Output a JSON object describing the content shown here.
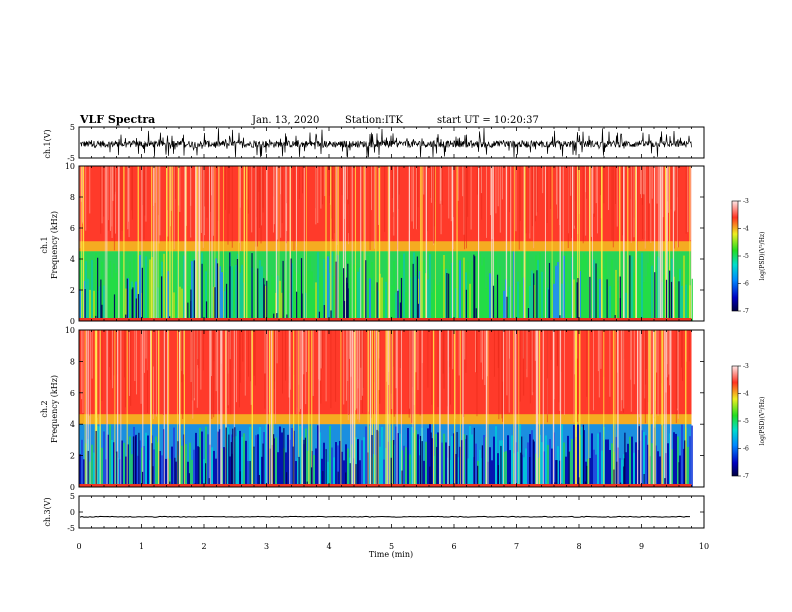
{
  "header": {
    "title": "VLF Spectra",
    "date": "Jan. 13, 2020",
    "station": "Station:ITK",
    "start": "start UT = 10:20:37"
  },
  "colors": {
    "spectrum_low": "#0000a0",
    "spectrum_mid": "#22dd44",
    "spectrum_high": "#ff3322",
    "waveform": "#000000"
  },
  "chart_data": [
    {
      "id": "ch1-waveform",
      "type": "line",
      "ylabel": "ch.1(V)",
      "yticks": [
        "5",
        "-5"
      ],
      "ylim": [
        -5,
        5
      ],
      "description_level": [
        -0.5,
        3.0
      ]
    },
    {
      "id": "ch1-spectrogram",
      "type": "heatmap",
      "ylabel": "ch.1\nFrequency (kHz)",
      "ylabel_line1": "ch.1",
      "ylabel_line2": "Frequency (kHz)",
      "yticks": [
        "0",
        "2",
        "4",
        "6",
        "8",
        "10"
      ],
      "ylim": [
        0,
        10
      ],
      "band_boundary_khz": 4.5,
      "colorbar": {
        "label": "log(PSD)(V²/Hz)",
        "ticks": [
          "-3",
          "-4",
          "-5",
          "-6",
          "-7"
        ],
        "range": [
          -7,
          -3
        ]
      }
    },
    {
      "id": "ch2-spectrogram",
      "type": "heatmap",
      "ylabel_line1": "ch.2",
      "ylabel_line2": "Frequency (kHz)",
      "yticks": [
        "0",
        "2",
        "4",
        "6",
        "8",
        "10"
      ],
      "ylim": [
        0,
        10
      ],
      "band_boundary_khz": 4.0,
      "colorbar": {
        "label": "log(PSD)(V²/Hz)",
        "ticks": [
          "-3",
          "-4",
          "-5",
          "-6",
          "-7"
        ],
        "range": [
          -7,
          -3
        ]
      }
    },
    {
      "id": "ch3-waveform",
      "type": "line",
      "ylabel": "ch.3(V)",
      "yticks": [
        "5",
        "0",
        "-5"
      ],
      "ylim": [
        -5,
        5
      ],
      "level": -1.5
    }
  ],
  "xaxis": {
    "label": "Time (min)",
    "ticks": [
      "0",
      "1",
      "2",
      "3",
      "4",
      "5",
      "6",
      "7",
      "8",
      "9",
      "10"
    ],
    "xlim": [
      0,
      10
    ],
    "data_end": 9.8
  }
}
